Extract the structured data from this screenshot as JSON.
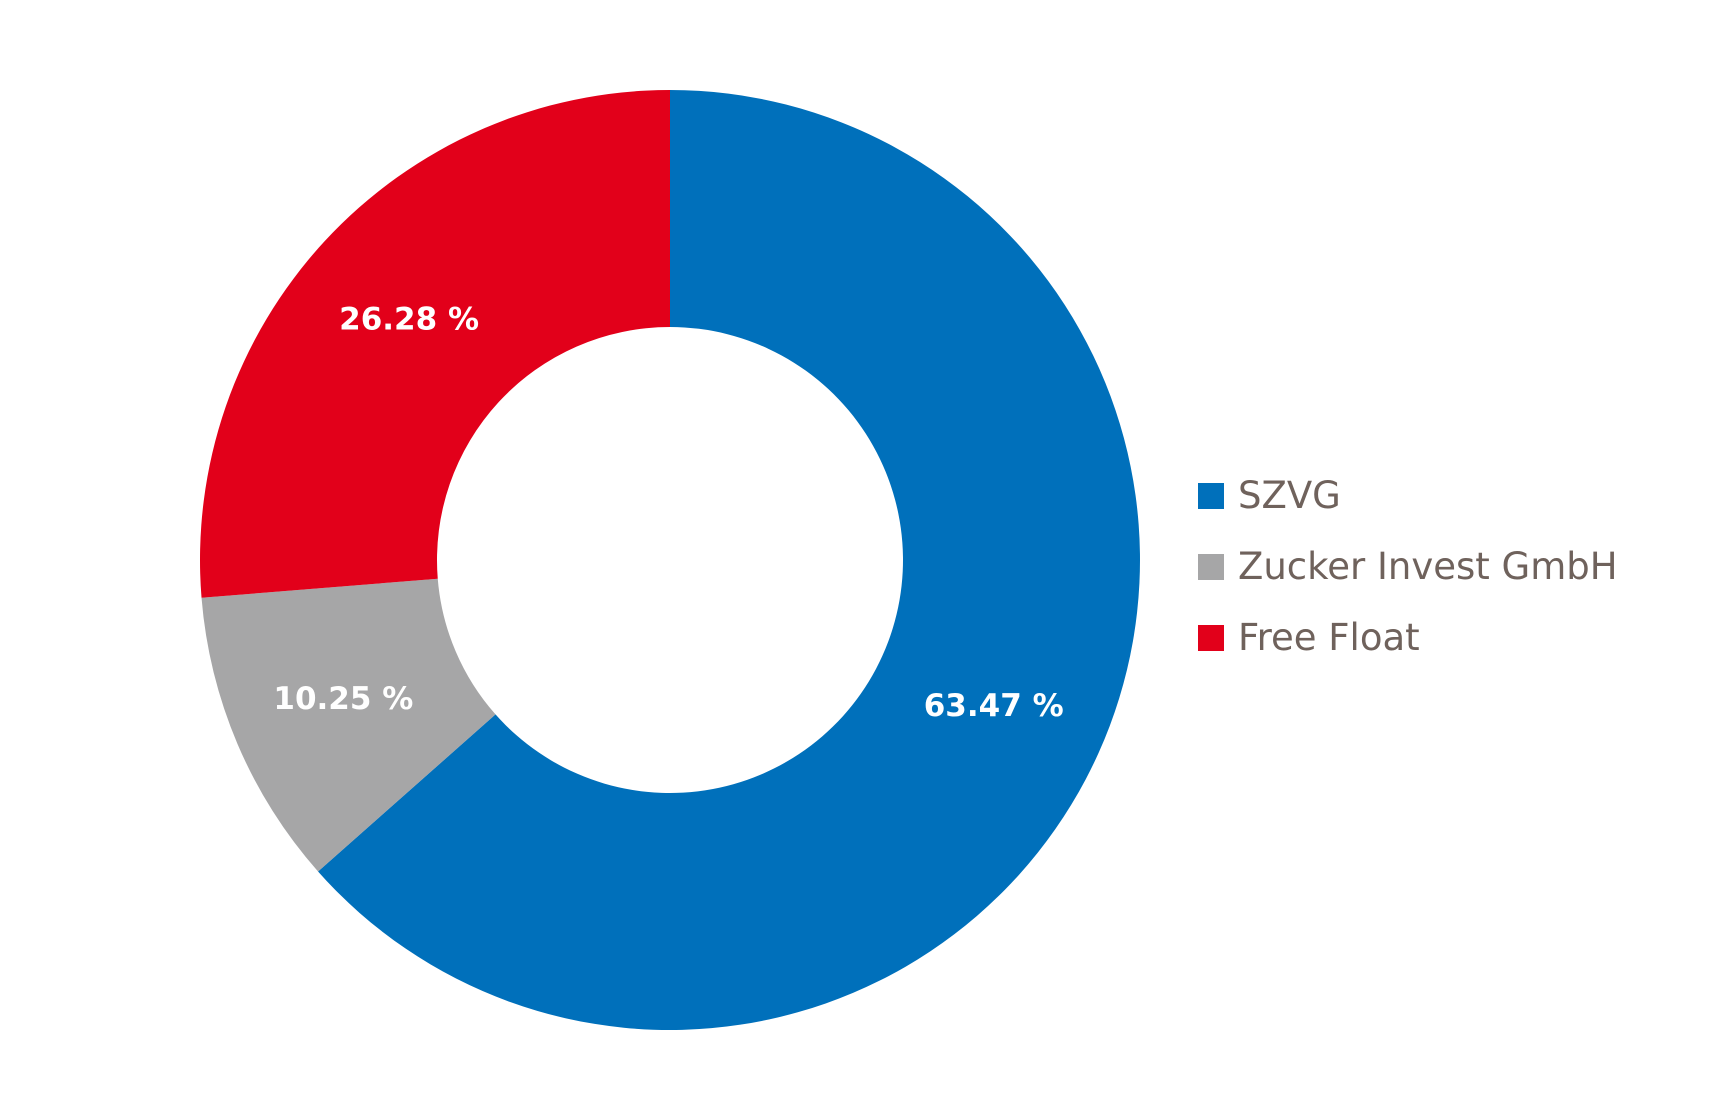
{
  "chart_data": {
    "type": "pie",
    "donut": true,
    "start_angle_deg": 0,
    "direction": "clockwise",
    "legend_position": "right",
    "slices": [
      {
        "label": "SZVG",
        "value": 63.47,
        "value_label": "63.47 %",
        "color": "#0070bb"
      },
      {
        "label": "Zucker Invest GmbH",
        "value": 10.25,
        "value_label": "10.25 %",
        "color": "#a6a6a7"
      },
      {
        "label": "Free Float",
        "value": 26.28,
        "value_label": "26.28 %",
        "color": "#e2001a"
      }
    ]
  }
}
